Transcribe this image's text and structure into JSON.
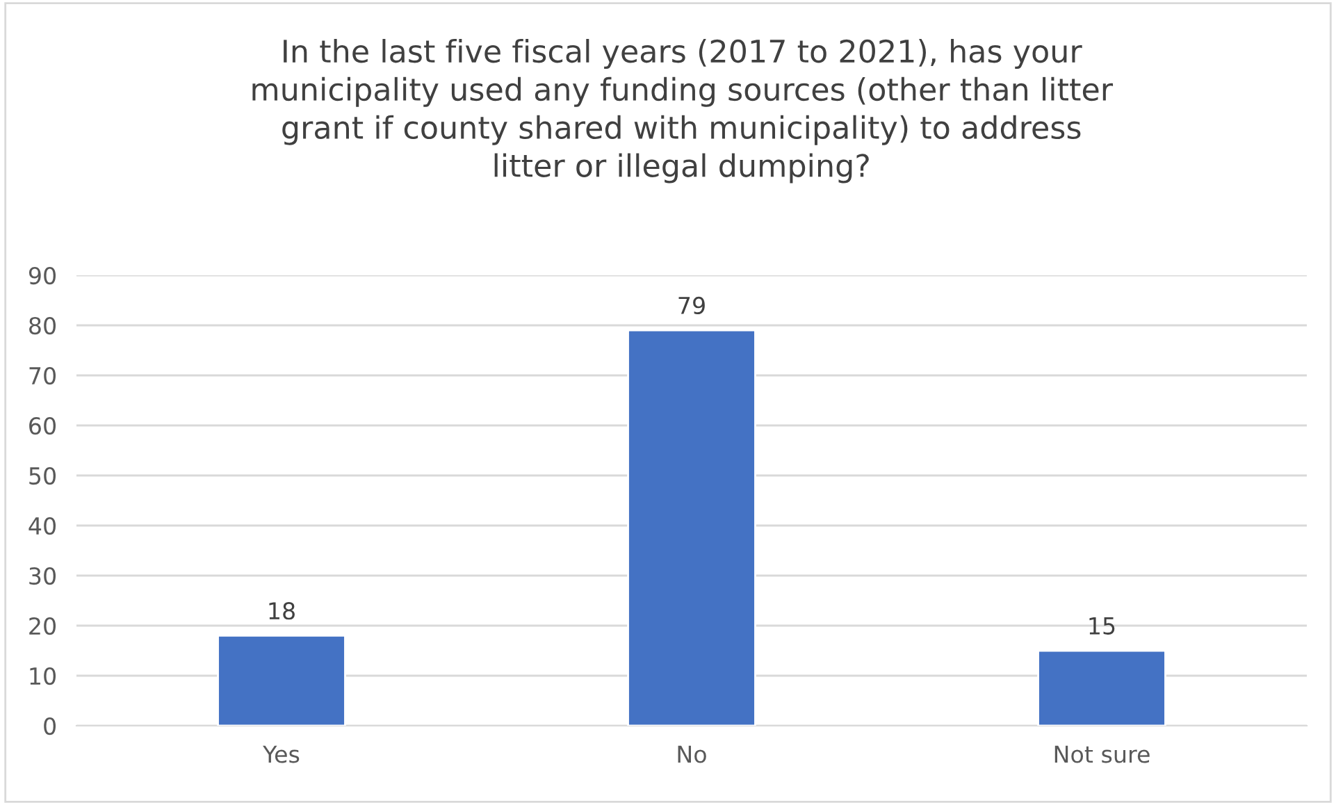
{
  "chart_data": {
    "type": "bar",
    "title": "In the last five fiscal years (2017 to 2021), has your\nmunicipality used any funding sources (other than litter\ngrant if county shared with municipality) to address\nlitter or illegal dumping?",
    "categories": [
      "Yes",
      "No",
      "Not sure"
    ],
    "values": [
      18,
      79,
      15
    ],
    "color": "#4472c4",
    "ylim": [
      0,
      90
    ],
    "yticks": [
      0,
      10,
      20,
      30,
      40,
      50,
      60,
      70,
      80,
      90
    ],
    "grid": "y",
    "data_labels": true
  }
}
